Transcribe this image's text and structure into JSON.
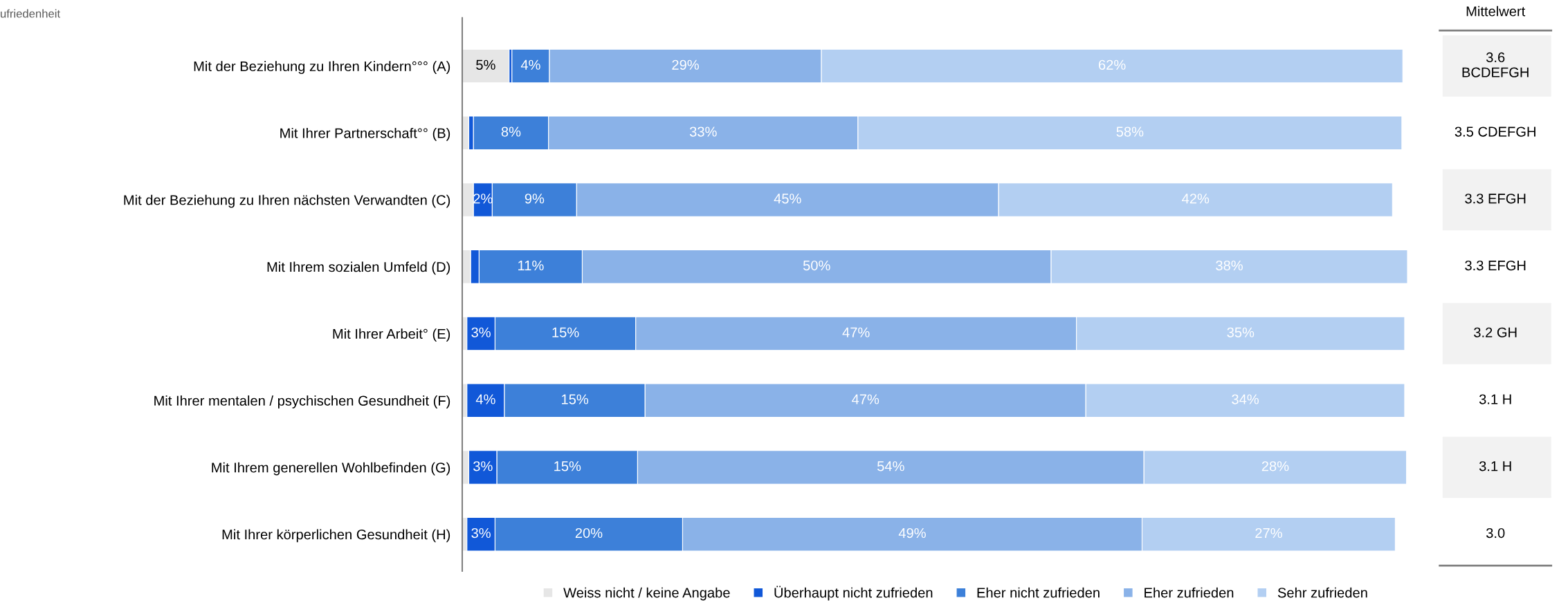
{
  "chart_data": {
    "type": "bar",
    "orientation": "horizontal",
    "stacked": true,
    "title": "ufriedenheit",
    "tick_labels": "y",
    "legend": "bottom",
    "categories": [
      "Mit der Beziehung zu Ihren Kindern°°° (A)",
      "Mit Ihrer Partnerschaft°° (B)",
      "Mit der Beziehung zu Ihren nächsten Verwandten (C)",
      "Mit Ihrem sozialen Umfeld (D)",
      "Mit Ihrer Arbeit° (E)",
      "Mit Ihrer mentalen / psychischen Gesundheit (F)",
      "Mit Ihrem generellen Wohlbefinden (G)",
      "Mit Ihrer körperlichen Gesundheit (H)"
    ],
    "series": [
      {
        "name": "Weiss nicht / keine Angabe",
        "color": "#e6e6e6",
        "values": [
          5,
          0.7,
          1.2,
          0.9,
          0.5,
          0.5,
          0.7,
          0.5
        ],
        "value_labels": [
          "5%",
          null,
          null,
          null,
          null,
          null,
          null,
          null
        ]
      },
      {
        "name": "Überhaupt nicht zufrieden",
        "color": "#1158d8",
        "values": [
          0.3,
          0.5,
          2,
          0.9,
          3,
          4,
          3,
          3
        ],
        "value_labels": [
          null,
          null,
          "2%",
          null,
          "3%",
          "4%",
          "3%",
          "3%"
        ]
      },
      {
        "name": "Eher nicht zufrieden",
        "color": "#3d80d9",
        "values": [
          4,
          8,
          9,
          11,
          15,
          15,
          15,
          20
        ],
        "value_labels": [
          "4%",
          "8%",
          "9%",
          "11%",
          "15%",
          "15%",
          "15%",
          "20%"
        ]
      },
      {
        "name": "Eher zufrieden",
        "color": "#8ab2e8",
        "values": [
          29,
          33,
          45,
          50,
          47,
          47,
          54,
          49
        ],
        "value_labels": [
          "29%",
          "33%",
          "45%",
          "50%",
          "47%",
          "47%",
          "54%",
          "49%"
        ]
      },
      {
        "name": "Sehr zufrieden",
        "color": "#b3cff2",
        "values": [
          62,
          58,
          42,
          38,
          35,
          34,
          28,
          27
        ],
        "value_labels": [
          "62%",
          "58%",
          "42%",
          "38%",
          "35%",
          "34%",
          "28%",
          "27%"
        ]
      }
    ],
    "annotations": [
      "Mittelwert",
      "3.6\nBCDEFGH",
      "3.5 CDEFGH",
      "3.3 EFGH",
      "3.3 EFGH",
      "3.2 GH",
      "3.1 H",
      "3.1 H",
      "3.0"
    ]
  }
}
